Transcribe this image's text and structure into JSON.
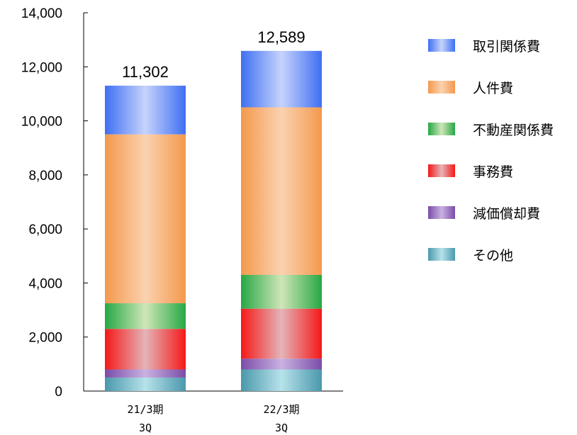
{
  "chart_data": {
    "type": "bar",
    "stacked": true,
    "categories": [
      [
        "21/3期",
        "3Q"
      ],
      [
        "22/3期",
        "3Q"
      ]
    ],
    "ylim": [
      0,
      14000
    ],
    "yticks": [
      0,
      2000,
      4000,
      6000,
      8000,
      10000,
      12000,
      14000
    ],
    "ytick_labels": [
      "0",
      "2,000",
      "4,000",
      "6,000",
      "8,000",
      "10,000",
      "12,000",
      "14,000"
    ],
    "totals": [
      "11,302",
      "12,589"
    ],
    "legend_position": "right",
    "grid": false,
    "series": [
      {
        "name": "その他",
        "values": [
          500,
          800
        ],
        "color": "#4a98ac",
        "light": "#b7e2ea"
      },
      {
        "name": "減価償却費",
        "values": [
          300,
          400
        ],
        "color": "#7b4ca8",
        "light": "#c9b2e2"
      },
      {
        "name": "事務費",
        "values": [
          1500,
          1850
        ],
        "color": "#f51818",
        "light": "#e4b4b8"
      },
      {
        "name": "不動産関係費",
        "values": [
          950,
          1250
        ],
        "color": "#26a845",
        "light": "#cfe6b7"
      },
      {
        "name": "人件費",
        "values": [
          6250,
          6200
        ],
        "color": "#f4994c",
        "light": "#fad2b0"
      },
      {
        "name": "取引関係費",
        "values": [
          1802,
          2089
        ],
        "color": "#3f6ff3",
        "light": "#c6d3fb"
      }
    ],
    "legend_order": [
      "取引関係費",
      "人件費",
      "不動産関係費",
      "事務費",
      "減価償却費",
      "その他"
    ]
  }
}
